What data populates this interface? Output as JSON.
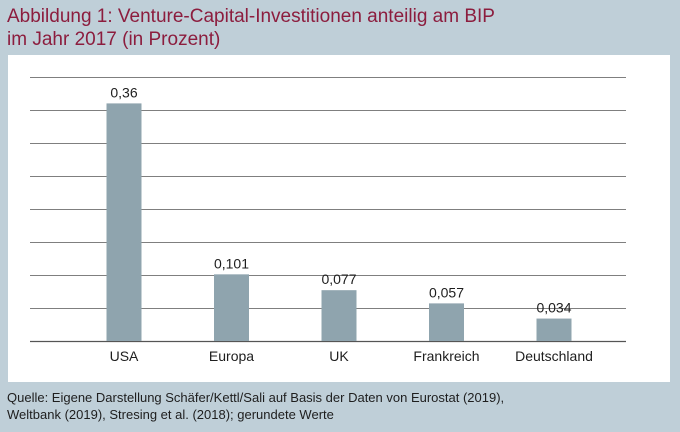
{
  "title_lines": [
    "Abbildung 1: Venture-Capital-Investitionen anteilig am BIP",
    "im Jahr 2017 (in Prozent)"
  ],
  "source_lines": [
    "Quelle: Eigene Darstellung Schäfer/Kettl/Sali auf Basis der Daten von Eurostat (2019),",
    "Weltbank (2019), Stresing et al. (2018); gerundete Werte"
  ],
  "colors": {
    "title": "#8c1d3e",
    "bar": "#8fa4ae",
    "background": "#bfcfd8",
    "panel": "#ffffff",
    "grid": "#555555"
  },
  "chart_data": {
    "type": "bar",
    "categories": [
      "USA",
      "Europa",
      "UK",
      "Frankreich",
      "Deutschland"
    ],
    "values": [
      0.36,
      0.101,
      0.077,
      0.057,
      0.034
    ],
    "value_labels": [
      "0,36",
      "0,101",
      "0,077",
      "0,057",
      "0,034"
    ],
    "ylim": [
      0,
      0.4
    ],
    "grid_step": 0.05,
    "grid": true,
    "legend": "none"
  }
}
